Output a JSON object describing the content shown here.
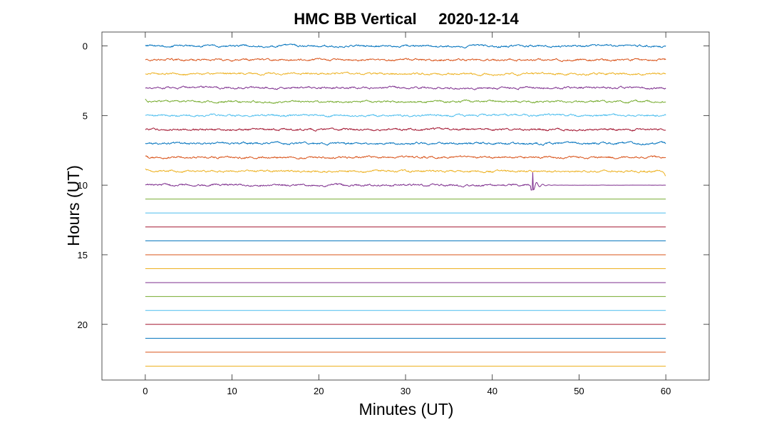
{
  "chart_data": {
    "type": "line",
    "title": "HMC BB Vertical     2020-12-14",
    "xlabel": "Minutes (UT)",
    "ylabel": "Hours (UT)",
    "xlim": [
      -5,
      65
    ],
    "ylim": [
      24,
      -1
    ],
    "y_reversed": true,
    "xticks": [
      0,
      10,
      20,
      30,
      40,
      50,
      60
    ],
    "yticks": [
      0,
      5,
      10,
      15,
      20
    ],
    "grid": false,
    "x_range_of_traces": [
      0,
      60
    ],
    "active_hours": [
      0,
      1,
      2,
      3,
      4,
      5,
      6,
      7,
      8,
      9,
      10
    ],
    "event": {
      "hour": 10,
      "minute": 44.6,
      "description": ""
    },
    "series": [
      {
        "hour": 0,
        "color": "#0072BD"
      },
      {
        "hour": 1,
        "color": "#D95319"
      },
      {
        "hour": 2,
        "color": "#EDB120"
      },
      {
        "hour": 3,
        "color": "#7E2F8E"
      },
      {
        "hour": 4,
        "color": "#77AC30"
      },
      {
        "hour": 5,
        "color": "#4DBEEE"
      },
      {
        "hour": 6,
        "color": "#A2142F"
      },
      {
        "hour": 7,
        "color": "#0072BD"
      },
      {
        "hour": 8,
        "color": "#D95319"
      },
      {
        "hour": 9,
        "color": "#EDB120"
      },
      {
        "hour": 10,
        "color": "#7E2F8E"
      },
      {
        "hour": 11,
        "color": "#77AC30"
      },
      {
        "hour": 12,
        "color": "#4DBEEE"
      },
      {
        "hour": 13,
        "color": "#A2142F"
      },
      {
        "hour": 14,
        "color": "#0072BD"
      },
      {
        "hour": 15,
        "color": "#D95319"
      },
      {
        "hour": 16,
        "color": "#EDB120"
      },
      {
        "hour": 17,
        "color": "#7E2F8E"
      },
      {
        "hour": 18,
        "color": "#77AC30"
      },
      {
        "hour": 19,
        "color": "#4DBEEE"
      },
      {
        "hour": 20,
        "color": "#A2142F"
      },
      {
        "hour": 21,
        "color": "#0072BD"
      },
      {
        "hour": 22,
        "color": "#D95319"
      },
      {
        "hour": 23,
        "color": "#EDB120"
      }
    ]
  }
}
